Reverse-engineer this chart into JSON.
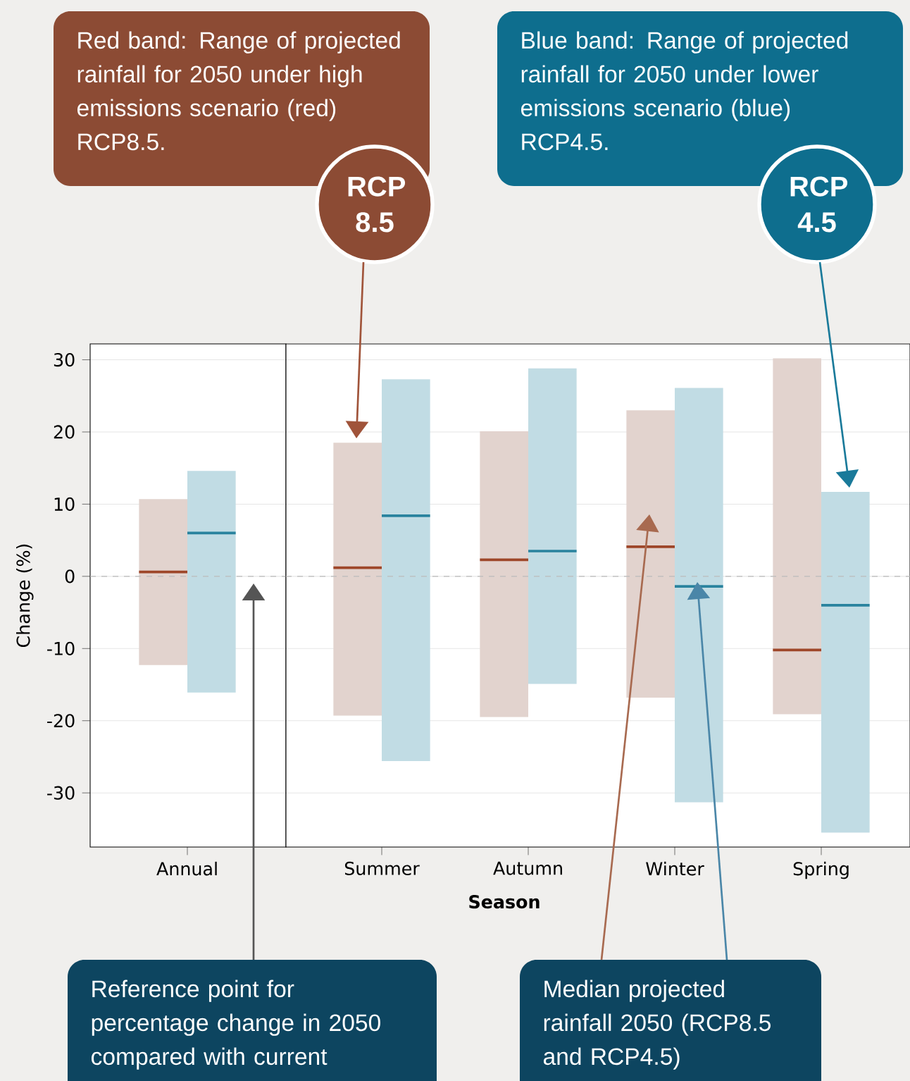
{
  "chart_data": [
    {
      "type": "box",
      "ylabel": "Change (%)",
      "categories": [
        "Annual"
      ],
      "series": [
        {
          "color": "#e2d3ce",
          "boxes": [
            {
              "low": -12.3,
              "q1": -12.3,
              "median": 0.6,
              "q3": 10.7,
              "high": 10.7
            }
          ]
        },
        {
          "color": "#c1dce4",
          "boxes": [
            {
              "low": -16.1,
              "q1": -16.1,
              "median": 6.0,
              "q3": 14.6,
              "high": 14.6
            }
          ]
        }
      ],
      "ylim": [
        -37.5,
        32.2
      ],
      "yticks": [
        -30,
        -20,
        -10,
        0,
        10,
        20,
        30
      ],
      "grid": "y",
      "ref_lines": [
        {
          "axis": "y",
          "value": 0,
          "color": "#bbbbbb",
          "line_style": "dashed"
        }
      ],
      "annotations": [
        "Red band: Range of projected rainfall for 2050 under high emissions scenario (red) RCP8.5.",
        "Blue band: Range of projected rainfall for 2050 under lower emissions scenario (blue) RCP4.5.",
        "RCP 8.5",
        "RCP 4.5",
        "Reference point for percentage change in 2050 compared with current",
        "Median projected rainfall 2050 (RCP8.5 and RCP4.5)"
      ]
    },
    {
      "type": "box",
      "xlabel": "Season",
      "categories": [
        "Summer",
        "Autumn",
        "Winter",
        "Spring"
      ],
      "series": [
        {
          "color": "#e2d3ce",
          "boxes": [
            {
              "low": -19.3,
              "q1": -19.3,
              "median": 1.2,
              "q3": 18.5,
              "high": 18.5
            },
            {
              "low": -19.5,
              "q1": -19.5,
              "median": 2.3,
              "q3": 20.1,
              "high": 20.1
            },
            {
              "low": -16.8,
              "q1": -16.8,
              "median": 4.1,
              "q3": 23.0,
              "high": 23.0
            },
            {
              "low": -19.1,
              "q1": -19.1,
              "median": -10.2,
              "q3": 30.2,
              "high": 30.2
            }
          ]
        },
        {
          "color": "#c1dce4",
          "boxes": [
            {
              "low": -25.6,
              "q1": -25.6,
              "median": 8.4,
              "q3": 27.3,
              "high": 27.3
            },
            {
              "low": -14.9,
              "q1": -14.9,
              "median": 3.5,
              "q3": 28.8,
              "high": 28.8
            },
            {
              "low": -31.3,
              "q1": -31.3,
              "median": -1.4,
              "q3": 26.1,
              "high": 26.1
            },
            {
              "low": -35.5,
              "q1": -35.5,
              "median": -4.0,
              "q3": 11.7,
              "high": 11.7
            }
          ]
        }
      ],
      "ylim": [
        -37.5,
        32.2
      ],
      "yticks": [
        -30,
        -20,
        -10,
        0,
        10,
        20,
        30
      ],
      "grid": "y",
      "tick_labels": "x",
      "ref_lines": [
        {
          "axis": "y",
          "value": 0,
          "color": "#bbbbbb",
          "line_style": "dashed"
        }
      ]
    }
  ]
}
